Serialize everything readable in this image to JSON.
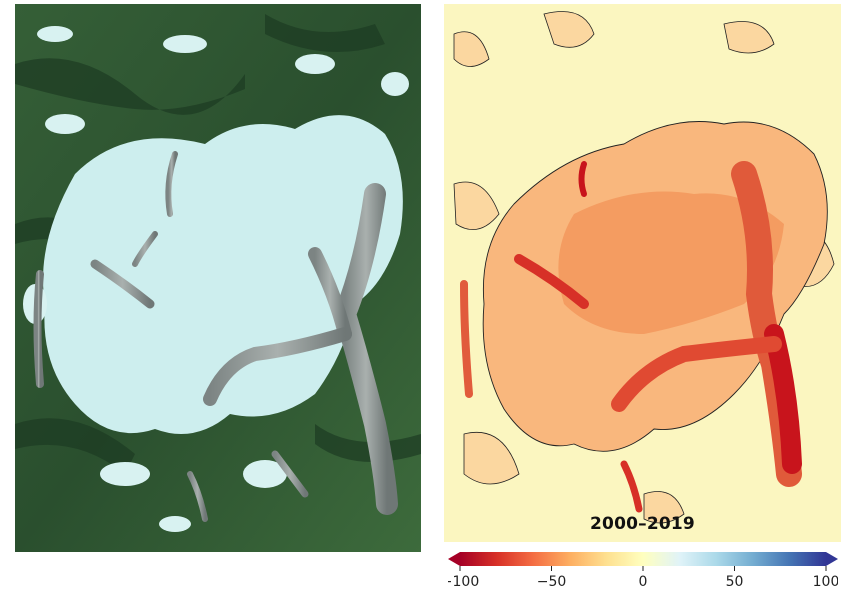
{
  "panels": {
    "satellite": {
      "name": "satellite-image"
    },
    "change": {
      "name": "elevation-change-map",
      "period_label": "2000–2019"
    }
  },
  "colorbar": {
    "min": -100,
    "max": 100,
    "ticks": [
      -100,
      -50,
      0,
      50,
      100
    ],
    "tick_labels": [
      "−100",
      "−50",
      "0",
      "50",
      "100"
    ],
    "extend": "both",
    "colors": [
      "#a50026",
      "#d73027",
      "#f46d43",
      "#fdae61",
      "#fee090",
      "#ffffbf",
      "#e0f3f8",
      "#abd9e9",
      "#74add1",
      "#4575b4",
      "#313695"
    ]
  },
  "colors": {
    "vegetation": "#2f5a34",
    "ice": "#cfeeee",
    "glacier_tongue": "#8f9795",
    "stable_ground": "#fbf6c0",
    "strong_loss": "#c8141c"
  }
}
